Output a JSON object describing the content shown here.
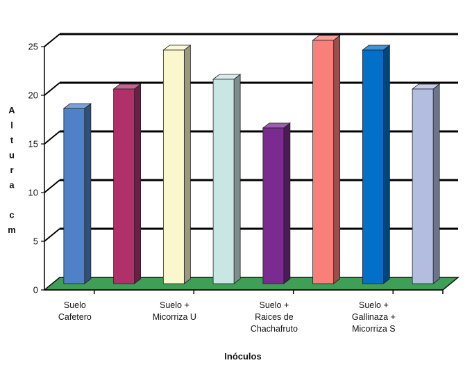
{
  "chart_data": {
    "type": "bar",
    "style": "3d",
    "categories": [
      [
        "Suelo",
        "Cafetero"
      ],
      [],
      [
        "Suelo +",
        "Micorriza U"
      ],
      [],
      [
        "Suelo +",
        "Raices de",
        "Chachafruto"
      ],
      [],
      [
        "Suelo +",
        "Gallinaza +",
        "Micorriza S"
      ],
      []
    ],
    "values": [
      18,
      20,
      24,
      21,
      16,
      25,
      24,
      20
    ],
    "colors": [
      "#4f81c8",
      "#b0306a",
      "#fbf7cc",
      "#c8e6e4",
      "#7b2a90",
      "#f97f7a",
      "#0070c8",
      "#b2bde0"
    ],
    "floor_color": "#3f9f57",
    "xlabel": "Inóculos",
    "ylabel_letters": [
      "A",
      "l",
      "t",
      "u",
      "r",
      "a",
      "",
      "c",
      "m"
    ],
    "ylim": [
      0,
      25
    ],
    "yticks": [
      0,
      5,
      10,
      15,
      20,
      25
    ],
    "grid": true
  }
}
